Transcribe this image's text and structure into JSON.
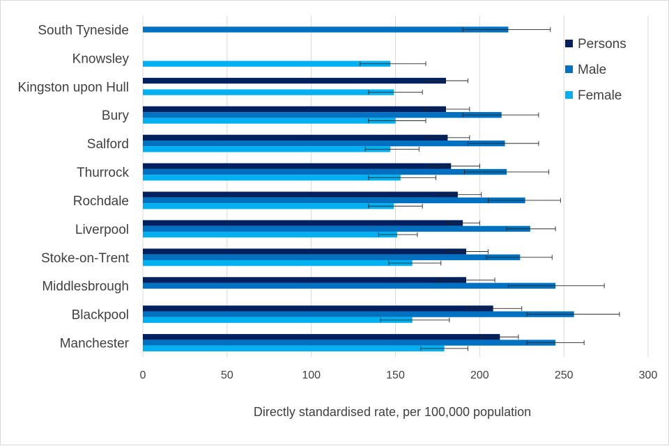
{
  "chart_data": {
    "type": "bar",
    "orientation": "horizontal",
    "title": "",
    "xlabel": "Directly standardised rate, per 100,000 population",
    "ylabel": "",
    "xlim": [
      0,
      300
    ],
    "xticks": [
      0,
      50,
      100,
      150,
      200,
      250,
      300
    ],
    "grid": true,
    "legend_position": "right",
    "categories": [
      "South Tyneside",
      "Knowsley",
      "Kingston upon Hull",
      "Bury",
      "Salford",
      "Thurrock",
      "Rochdale",
      "Liverpool",
      "Stoke-on-Trent",
      "Middlesbrough",
      "Blackpool",
      "Manchester"
    ],
    "series": [
      {
        "name": "Persons",
        "color": "#002060",
        "values": [
          null,
          null,
          180,
          180,
          181,
          183,
          187,
          190,
          192,
          192,
          208,
          212
        ],
        "error_low": [
          null,
          null,
          168,
          167,
          168,
          169,
          174,
          181,
          180,
          176,
          192,
          201
        ],
        "error_high": [
          null,
          null,
          193,
          194,
          194,
          200,
          201,
          200,
          205,
          209,
          225,
          223
        ]
      },
      {
        "name": "Male",
        "color": "#0070c0",
        "values": [
          217,
          null,
          null,
          213,
          215,
          216,
          227,
          230,
          224,
          245,
          256,
          245
        ],
        "error_low": [
          190,
          null,
          null,
          190,
          193,
          191,
          205,
          216,
          204,
          217,
          228,
          228
        ],
        "error_high": [
          242,
          null,
          null,
          235,
          235,
          241,
          248,
          245,
          243,
          274,
          283,
          262
        ]
      },
      {
        "name": "Female",
        "color": "#00b0f0",
        "values": [
          null,
          147,
          149,
          150,
          147,
          153,
          149,
          151,
          160,
          null,
          160,
          179
        ],
        "error_low": [
          null,
          129,
          134,
          134,
          132,
          134,
          134,
          140,
          146,
          null,
          141,
          165
        ],
        "error_high": [
          null,
          168,
          166,
          168,
          164,
          174,
          166,
          163,
          177,
          null,
          182,
          193
        ]
      }
    ]
  }
}
